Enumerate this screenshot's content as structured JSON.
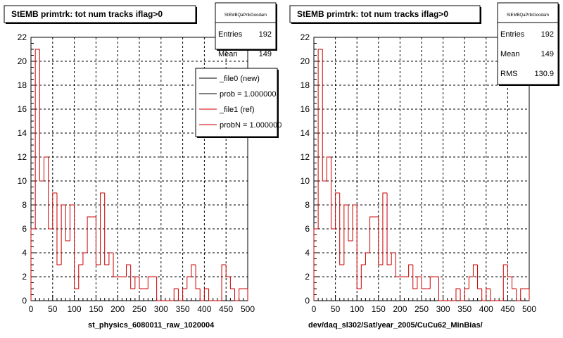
{
  "chart_data": [
    {
      "type": "bar",
      "title": "StEMB primtrk: tot num tracks iflag>0",
      "xlabel": "st_physics_6080011_raw_1020004",
      "xlim": [
        0,
        500
      ],
      "ylim": [
        0,
        22
      ],
      "x_ticks": [
        0,
        50,
        100,
        150,
        200,
        250,
        300,
        350,
        400,
        450,
        500
      ],
      "y_ticks": [
        0,
        2,
        4,
        6,
        8,
        10,
        12,
        14,
        16,
        18,
        20,
        22
      ],
      "grid": true,
      "bin_width": 10,
      "stats": {
        "name": "StEMBQaPrtkGoodam",
        "rows": [
          {
            "label": "Entries",
            "value": "192"
          },
          {
            "label": "Mean",
            "value": "149"
          }
        ]
      },
      "legend": {
        "placement": "top-right",
        "entries": [
          {
            "label": "_file0 (new)",
            "color": "#000000"
          },
          {
            "label": "prob = 1.000000",
            "color": "#000000"
          },
          {
            "label": "_file1 (ref)",
            "color": "#cc0000"
          },
          {
            "label": "probN = 1.000000",
            "color": "#cc0000"
          }
        ]
      },
      "series": [
        {
          "color": "#cc0000",
          "values": [
            6,
            21,
            10,
            12,
            6,
            9,
            3,
            8,
            5,
            8,
            1,
            3,
            4,
            7,
            7,
            3,
            9,
            3,
            4,
            2,
            2,
            2,
            3,
            1,
            2,
            1,
            1,
            2,
            2,
            0,
            0,
            0,
            0,
            1,
            0,
            1,
            2,
            3,
            1,
            0,
            1,
            0,
            0,
            0,
            3,
            2,
            1,
            0,
            1,
            1
          ]
        }
      ]
    },
    {
      "type": "bar",
      "title": "StEMB primtrk: tot num tracks iflag>0",
      "xlabel": "dev/daq_sl302/Sat/year_2005/CuCu62_MinBias/",
      "xlim": [
        0,
        500
      ],
      "ylim": [
        0,
        22
      ],
      "x_ticks": [
        0,
        50,
        100,
        150,
        200,
        250,
        300,
        350,
        400,
        450,
        500
      ],
      "y_ticks": [
        0,
        2,
        4,
        6,
        8,
        10,
        12,
        14,
        16,
        18,
        20,
        22
      ],
      "grid": true,
      "bin_width": 10,
      "stats": {
        "name": "StEMBQaPrtkGoodam",
        "rows": [
          {
            "label": "Entries",
            "value": "192"
          },
          {
            "label": "Mean",
            "value": "149"
          },
          {
            "label": "RMS",
            "value": "130.9"
          }
        ]
      },
      "series": [
        {
          "color": "#cc0000",
          "values": [
            6,
            21,
            10,
            12,
            6,
            9,
            3,
            8,
            5,
            8,
            1,
            3,
            4,
            7,
            7,
            3,
            9,
            3,
            4,
            2,
            2,
            2,
            3,
            1,
            2,
            1,
            1,
            2,
            2,
            0,
            0,
            0,
            0,
            1,
            0,
            1,
            2,
            3,
            1,
            0,
            1,
            0,
            0,
            0,
            3,
            2,
            1,
            0,
            1,
            1
          ]
        }
      ]
    }
  ]
}
